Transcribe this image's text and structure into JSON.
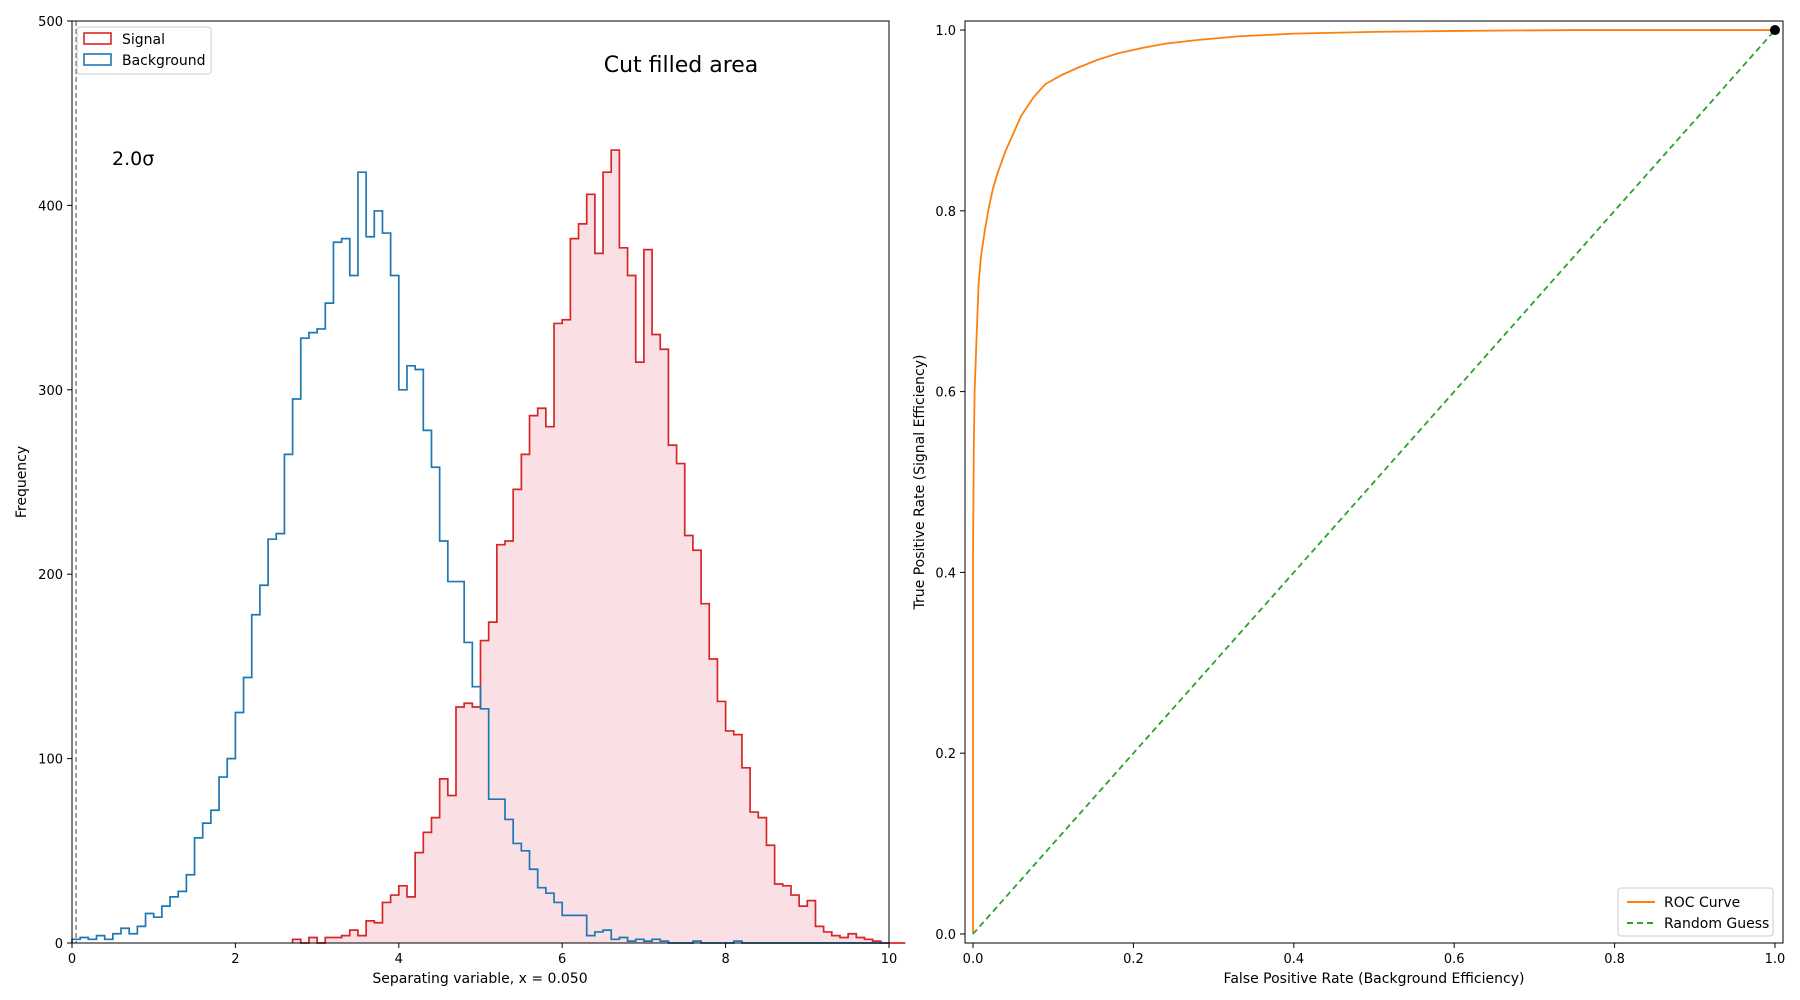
{
  "chart_data": [
    {
      "type": "histogram",
      "title": "",
      "xlabel": "Separating variable, x = 0.050",
      "ylabel": "Frequency",
      "xlim": [
        0,
        10
      ],
      "ylim": [
        0,
        500
      ],
      "xticks": [
        "0",
        "2",
        "4",
        "6",
        "8",
        "10"
      ],
      "yticks": [
        "0",
        "100",
        "200",
        "300",
        "400",
        "500"
      ],
      "annotations": {
        "main": "Cut filled area",
        "sigma": "2.0σ"
      },
      "cut_x": 0.05,
      "bin_width": 0.1,
      "legend": {
        "placement": "upper-left",
        "entries": [
          "Signal",
          "Background"
        ]
      },
      "series": [
        {
          "name": "Signal",
          "color": "#d62728",
          "fill": "#f9dde2",
          "bins_start": 2.7,
          "values": [
            2,
            0,
            3,
            0,
            3,
            3,
            4,
            7,
            4,
            12,
            11,
            22,
            26,
            31,
            25,
            49,
            60,
            68,
            89,
            80,
            128,
            130,
            128,
            164,
            174,
            216,
            218,
            246,
            265,
            286,
            290,
            280,
            336,
            338,
            382,
            390,
            406,
            374,
            418,
            430,
            377,
            362,
            315,
            376,
            330,
            322,
            270,
            260,
            221,
            213,
            184,
            154,
            131,
            115,
            113,
            95,
            71,
            68,
            53,
            32,
            31,
            26,
            20,
            23,
            9,
            6,
            4,
            3,
            5,
            3,
            2,
            1,
            0,
            0,
            0
          ],
          "threshold_fill": "above-cut"
        },
        {
          "name": "Background",
          "color": "#1f77b4",
          "bins_start": 0.0,
          "values": [
            2,
            3,
            2,
            4,
            2,
            5,
            8,
            5,
            9,
            16,
            14,
            20,
            25,
            28,
            37,
            57,
            65,
            72,
            90,
            100,
            125,
            144,
            178,
            194,
            219,
            222,
            265,
            295,
            328,
            331,
            333,
            347,
            380,
            382,
            362,
            418,
            383,
            397,
            385,
            362,
            300,
            313,
            311,
            278,
            258,
            218,
            196,
            196,
            163,
            139,
            127,
            78,
            78,
            67,
            54,
            50,
            40,
            30,
            27,
            22,
            15,
            15,
            15,
            4,
            6,
            7,
            2,
            3,
            1,
            2,
            1,
            2,
            1,
            0,
            0,
            0,
            1,
            0,
            0,
            0,
            0,
            1,
            0,
            0,
            0,
            0,
            0,
            0,
            0,
            0,
            0,
            0,
            0,
            0,
            0,
            0,
            0,
            0,
            0,
            0
          ]
        }
      ]
    },
    {
      "type": "line",
      "title": "",
      "xlabel": "False Positive Rate (Background Efficiency)",
      "ylabel": "True Positive Rate (Signal Efficiency)",
      "xlim": [
        -0.01,
        1.01
      ],
      "ylim": [
        -0.01,
        1.01
      ],
      "xticks": [
        "0.0",
        "0.2",
        "0.4",
        "0.6",
        "0.8",
        "1.0"
      ],
      "yticks": [
        "0.0",
        "0.2",
        "0.4",
        "0.6",
        "0.8",
        "1.0"
      ],
      "legend": {
        "placement": "lower-right",
        "entries": [
          "ROC Curve",
          "Random Guess"
        ]
      },
      "series": [
        {
          "name": "ROC Curve",
          "color": "#ff7f0e",
          "style": "solid",
          "x": [
            0.0,
            0.0,
            0.001,
            0.002,
            0.004,
            0.007,
            0.01,
            0.015,
            0.02,
            0.025,
            0.03,
            0.04,
            0.05,
            0.06,
            0.075,
            0.09,
            0.11,
            0.13,
            0.155,
            0.18,
            0.21,
            0.24,
            0.28,
            0.33,
            0.4,
            0.5,
            0.6,
            0.75,
            0.9,
            1.0
          ],
          "y": [
            0.0,
            0.42,
            0.54,
            0.6,
            0.65,
            0.72,
            0.75,
            0.78,
            0.805,
            0.825,
            0.84,
            0.865,
            0.885,
            0.905,
            0.925,
            0.94,
            0.95,
            0.958,
            0.967,
            0.974,
            0.98,
            0.985,
            0.989,
            0.993,
            0.996,
            0.998,
            0.999,
            1.0,
            1.0,
            1.0
          ]
        },
        {
          "name": "Random Guess",
          "color": "#2ca02c",
          "style": "dashed",
          "x": [
            0.0,
            1.0
          ],
          "y": [
            0.0,
            1.0
          ]
        }
      ],
      "marker": {
        "x": 1.0,
        "y": 1.0,
        "color": "#000000"
      }
    }
  ]
}
